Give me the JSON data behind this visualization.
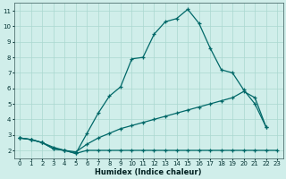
{
  "xlabel": "Humidex (Indice chaleur)",
  "ylabel": "",
  "bg_color": "#d0eeea",
  "line_color": "#006868",
  "grid_color": "#aad8d0",
  "xlim": [
    -0.5,
    23.5
  ],
  "ylim": [
    1.5,
    11.5
  ],
  "xticks": [
    0,
    1,
    2,
    3,
    4,
    5,
    6,
    7,
    8,
    9,
    10,
    11,
    12,
    13,
    14,
    15,
    16,
    17,
    18,
    19,
    20,
    21,
    22,
    23
  ],
  "yticks": [
    2,
    3,
    4,
    5,
    6,
    7,
    8,
    9,
    10,
    11
  ],
  "series": [
    {
      "x": [
        0,
        1,
        2,
        3,
        4,
        5,
        6,
        7,
        8,
        9,
        10,
        11,
        12,
        13,
        14,
        15,
        16,
        17,
        18,
        19,
        20,
        21,
        22
      ],
      "y": [
        2.8,
        2.7,
        2.5,
        2.1,
        2.0,
        1.8,
        3.1,
        4.4,
        5.5,
        6.1,
        7.9,
        8.0,
        9.5,
        10.3,
        10.5,
        11.1,
        10.2,
        8.6,
        7.2,
        7.0,
        5.9,
        5.0,
        3.5
      ]
    },
    {
      "x": [
        0,
        1,
        2,
        3,
        4,
        5,
        6,
        7,
        8,
        9,
        10,
        11,
        12,
        13,
        14,
        15,
        16,
        17,
        18,
        19,
        20,
        21,
        22
      ],
      "y": [
        2.8,
        2.7,
        2.5,
        2.2,
        2.0,
        1.9,
        2.4,
        2.8,
        3.1,
        3.4,
        3.6,
        3.8,
        4.0,
        4.2,
        4.4,
        4.6,
        4.8,
        5.0,
        5.2,
        5.4,
        5.8,
        5.4,
        3.5
      ]
    },
    {
      "x": [
        0,
        1,
        2,
        3,
        4,
        5,
        6,
        7,
        8,
        9,
        10,
        11,
        12,
        13,
        14,
        15,
        16,
        17,
        18,
        19,
        20,
        21,
        22,
        23
      ],
      "y": [
        2.8,
        2.7,
        2.5,
        2.1,
        2.0,
        1.8,
        2.0,
        2.0,
        2.0,
        2.0,
        2.0,
        2.0,
        2.0,
        2.0,
        2.0,
        2.0,
        2.0,
        2.0,
        2.0,
        2.0,
        2.0,
        2.0,
        2.0,
        2.0
      ]
    }
  ]
}
